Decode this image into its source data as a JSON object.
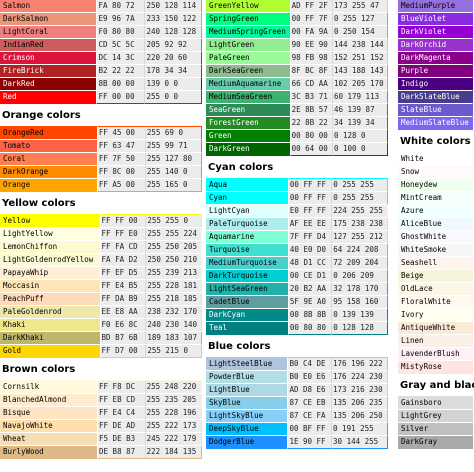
{
  "columns": [
    {
      "groups": [
        {
          "heading": "",
          "rows": [
            {
              "name": "Salmon",
              "hex": "FA 80 72",
              "rgb": "250 128 114",
              "color": "#fa8072",
              "text": "#000000"
            },
            {
              "name": "DarkSalmon",
              "hex": "E9 96 7A",
              "rgb": "233 150 122",
              "color": "#e9967a",
              "text": "#000000"
            },
            {
              "name": "LightCoral",
              "hex": "F0 80 80",
              "rgb": "240 128 128",
              "color": "#f08080",
              "text": "#000000"
            },
            {
              "name": "IndianRed",
              "hex": "CD 5C 5C",
              "rgb": "205 92 92",
              "color": "#cd5c5c",
              "text": "#000000"
            },
            {
              "name": "Crimson",
              "hex": "DC 14 3C",
              "rgb": "220 20 60",
              "color": "#dc143c",
              "text": "#ffffff"
            },
            {
              "name": "FireBrick",
              "hex": "B2 22 22",
              "rgb": "178 34 34",
              "color": "#b22222",
              "text": "#ffffff"
            },
            {
              "name": "DarkRed",
              "hex": "8B 00 00",
              "rgb": "139 0 0",
              "color": "#8b0000",
              "text": "#ffffff"
            },
            {
              "name": "Red",
              "hex": "FF 00 00",
              "rgb": "255 0 0",
              "color": "#ff0000",
              "text": "#ffffff"
            }
          ]
        },
        {
          "heading": "Orange colors",
          "rows": [
            {
              "name": "OrangeRed",
              "hex": "FF 45 00",
              "rgb": "255 69 0",
              "color": "#ff4500",
              "text": "#000000"
            },
            {
              "name": "Tomato",
              "hex": "FF 63 47",
              "rgb": "255 99 71",
              "color": "#ff6347",
              "text": "#000000"
            },
            {
              "name": "Coral",
              "hex": "FF 7F 50",
              "rgb": "255 127 80",
              "color": "#ff7f50",
              "text": "#000000"
            },
            {
              "name": "DarkOrange",
              "hex": "FF 8C 00",
              "rgb": "255 140 0",
              "color": "#ff8c00",
              "text": "#000000"
            },
            {
              "name": "Orange",
              "hex": "FF A5 00",
              "rgb": "255 165 0",
              "color": "#ffa500",
              "text": "#000000"
            }
          ]
        },
        {
          "heading": "Yellow colors",
          "rows": [
            {
              "name": "Yellow",
              "hex": "FF FF 00",
              "rgb": "255 255 0",
              "color": "#ffff00",
              "text": "#000000"
            },
            {
              "name": "LightYellow",
              "hex": "FF FF E0",
              "rgb": "255 255 224",
              "color": "#ffffe0",
              "text": "#000000"
            },
            {
              "name": "LemonChiffon",
              "hex": "FF FA CD",
              "rgb": "255 250 205",
              "color": "#fffacd",
              "text": "#000000"
            },
            {
              "name": "LightGoldenrodYellow",
              "hex": "FA FA D2",
              "rgb": "250 250 210",
              "color": "#fafad2",
              "text": "#000000"
            },
            {
              "name": "PapayaWhip",
              "hex": "FF EF D5",
              "rgb": "255 239 213",
              "color": "#ffefd5",
              "text": "#000000"
            },
            {
              "name": "Moccasin",
              "hex": "FF E4 B5",
              "rgb": "255 228 181",
              "color": "#ffe4b5",
              "text": "#000000"
            },
            {
              "name": "PeachPuff",
              "hex": "FF DA B9",
              "rgb": "255 218 185",
              "color": "#ffdab9",
              "text": "#000000"
            },
            {
              "name": "PaleGoldenrod",
              "hex": "EE E8 AA",
              "rgb": "238 232 170",
              "color": "#eee8aa",
              "text": "#000000"
            },
            {
              "name": "Khaki",
              "hex": "F0 E6 8C",
              "rgb": "240 230 140",
              "color": "#f0e68c",
              "text": "#000000"
            },
            {
              "name": "DarkKhaki",
              "hex": "BD B7 6B",
              "rgb": "189 183 107",
              "color": "#bdb76b",
              "text": "#000000"
            },
            {
              "name": "Gold",
              "hex": "FF D7 00",
              "rgb": "255 215 0",
              "color": "#ffd700",
              "text": "#000000"
            }
          ]
        },
        {
          "heading": "Brown colors",
          "rows": [
            {
              "name": "Cornsilk",
              "hex": "FF F8 DC",
              "rgb": "255 248 220",
              "color": "#fff8dc",
              "text": "#000000"
            },
            {
              "name": "BlanchedAlmond",
              "hex": "FF EB CD",
              "rgb": "255 235 205",
              "color": "#ffebcd",
              "text": "#000000"
            },
            {
              "name": "Bisque",
              "hex": "FF E4 C4",
              "rgb": "255 228 196",
              "color": "#ffe4c4",
              "text": "#000000"
            },
            {
              "name": "NavajoWhite",
              "hex": "FF DE AD",
              "rgb": "255 222 173",
              "color": "#ffdead",
              "text": "#000000"
            },
            {
              "name": "Wheat",
              "hex": "F5 DE B3",
              "rgb": "245 222 179",
              "color": "#f5deb3",
              "text": "#000000"
            },
            {
              "name": "BurlyWood",
              "hex": "DE B8 87",
              "rgb": "222 184 135",
              "color": "#deb887",
              "text": "#000000"
            }
          ]
        }
      ]
    },
    {
      "groups": [
        {
          "heading": "",
          "rows": [
            {
              "name": "GreenYellow",
              "hex": "AD FF 2F",
              "rgb": "173 255 47",
              "color": "#adff2f",
              "text": "#000000"
            },
            {
              "name": "SpringGreen",
              "hex": "00 FF 7F",
              "rgb": "0 255 127",
              "color": "#00ff7f",
              "text": "#000000"
            },
            {
              "name": "MediumSpringGreen",
              "hex": "00 FA 9A",
              "rgb": "0 250 154",
              "color": "#00fa9a",
              "text": "#000000"
            },
            {
              "name": "LightGreen",
              "hex": "90 EE 90",
              "rgb": "144 238 144",
              "color": "#90ee90",
              "text": "#000000"
            },
            {
              "name": "PaleGreen",
              "hex": "98 FB 98",
              "rgb": "152 251 152",
              "color": "#98fb98",
              "text": "#000000"
            },
            {
              "name": "DarkSeaGreen",
              "hex": "8F BC 8F",
              "rgb": "143 188 143",
              "color": "#8fbc8f",
              "text": "#000000"
            },
            {
              "name": "MediumAquamarine",
              "hex": "66 CD AA",
              "rgb": "102 205 170",
              "color": "#66cdaa",
              "text": "#000000"
            },
            {
              "name": "MediumSeaGreen",
              "hex": "3C B3 71",
              "rgb": "60 179 113",
              "color": "#3cb371",
              "text": "#000000"
            },
            {
              "name": "SeaGreen",
              "hex": "2E 8B 57",
              "rgb": "46 139 87",
              "color": "#2e8b57",
              "text": "#ffffff"
            },
            {
              "name": "ForestGreen",
              "hex": "22 8B 22",
              "rgb": "34 139 34",
              "color": "#228b22",
              "text": "#ffffff"
            },
            {
              "name": "Green",
              "hex": "00 80 00",
              "rgb": "0 128 0",
              "color": "#008000",
              "text": "#ffffff"
            },
            {
              "name": "DarkGreen",
              "hex": "00 64 00",
              "rgb": "0 100 0",
              "color": "#006400",
              "text": "#ffffff"
            }
          ]
        },
        {
          "heading": "Cyan colors",
          "rows": [
            {
              "name": "Aqua",
              "hex": "00 FF FF",
              "rgb": "0 255 255",
              "color": "#00ffff",
              "text": "#000000"
            },
            {
              "name": "Cyan",
              "hex": "00 FF FF",
              "rgb": "0 255 255",
              "color": "#00ffff",
              "text": "#000000"
            },
            {
              "name": "LightCyan",
              "hex": "E0 FF FF",
              "rgb": "224 255 255",
              "color": "#e0ffff",
              "text": "#000000"
            },
            {
              "name": "PaleTurquoise",
              "hex": "AF EE EE",
              "rgb": "175 238 238",
              "color": "#afeeee",
              "text": "#000000"
            },
            {
              "name": "Aquamarine",
              "hex": "7F FF D4",
              "rgb": "127 255 212",
              "color": "#7fffd4",
              "text": "#000000"
            },
            {
              "name": "Turquoise",
              "hex": "40 E0 D0",
              "rgb": "64 224 208",
              "color": "#40e0d0",
              "text": "#000000"
            },
            {
              "name": "MediumTurquoise",
              "hex": "48 D1 CC",
              "rgb": "72 209 204",
              "color": "#48d1cc",
              "text": "#000000"
            },
            {
              "name": "DarkTurquoise",
              "hex": "00 CE D1",
              "rgb": "0 206 209",
              "color": "#00ced1",
              "text": "#000000"
            },
            {
              "name": "LightSeaGreen",
              "hex": "20 B2 AA",
              "rgb": "32 178 170",
              "color": "#20b2aa",
              "text": "#000000"
            },
            {
              "name": "CadetBlue",
              "hex": "5F 9E A0",
              "rgb": "95 158 160",
              "color": "#5f9ea0",
              "text": "#000000"
            },
            {
              "name": "DarkCyan",
              "hex": "00 8B 8B",
              "rgb": "0 139 139",
              "color": "#008b8b",
              "text": "#ffffff"
            },
            {
              "name": "Teal",
              "hex": "00 80 80",
              "rgb": "0 128 128",
              "color": "#008080",
              "text": "#ffffff"
            }
          ]
        },
        {
          "heading": "Blue colors",
          "rows": [
            {
              "name": "LightSteelBlue",
              "hex": "B0 C4 DE",
              "rgb": "176 196 222",
              "color": "#b0c4de",
              "text": "#000000"
            },
            {
              "name": "PowderBlue",
              "hex": "B0 E0 E6",
              "rgb": "176 224 230",
              "color": "#b0e0e6",
              "text": "#000000"
            },
            {
              "name": "LightBlue",
              "hex": "AD D8 E6",
              "rgb": "173 216 230",
              "color": "#add8e6",
              "text": "#000000"
            },
            {
              "name": "SkyBlue",
              "hex": "87 CE EB",
              "rgb": "135 206 235",
              "color": "#87ceeb",
              "text": "#000000"
            },
            {
              "name": "LightSkyBlue",
              "hex": "87 CE FA",
              "rgb": "135 206 250",
              "color": "#87cefa",
              "text": "#000000"
            },
            {
              "name": "DeepSkyBlue",
              "hex": "00 BF FF",
              "rgb": "0 191 255",
              "color": "#00bfff",
              "text": "#000000"
            },
            {
              "name": "DodgerBlue",
              "hex": "1E 90 FF",
              "rgb": "30 144 255",
              "color": "#1e90ff",
              "text": "#000000"
            }
          ]
        }
      ]
    },
    {
      "groups": [
        {
          "heading": "",
          "rows": [
            {
              "name": "MediumPurple",
              "color": "#9370db",
              "text": "#000000"
            },
            {
              "name": "BlueViolet",
              "color": "#8a2be2",
              "text": "#ffffff"
            },
            {
              "name": "DarkViolet",
              "color": "#9400d3",
              "text": "#ffffff"
            },
            {
              "name": "DarkOrchid",
              "color": "#9932cc",
              "text": "#ffffff"
            },
            {
              "name": "DarkMagenta",
              "color": "#8b008b",
              "text": "#ffffff"
            },
            {
              "name": "Purple",
              "color": "#800080",
              "text": "#ffffff"
            },
            {
              "name": "Indigo",
              "color": "#4b0082",
              "text": "#ffffff"
            },
            {
              "name": "DarkSlateBlue",
              "color": "#483d8b",
              "text": "#ffffff"
            },
            {
              "name": "SlateBlue",
              "color": "#6a5acd",
              "text": "#ffffff"
            },
            {
              "name": "MediumSlateBlue",
              "color": "#7b68ee",
              "text": "#ffffff"
            }
          ]
        },
        {
          "heading": "White colors",
          "rows": [
            {
              "name": "White",
              "color": "#ffffff",
              "text": "#000000"
            },
            {
              "name": "Snow",
              "color": "#fffafa",
              "text": "#000000"
            },
            {
              "name": "Honeydew",
              "color": "#f0fff0",
              "text": "#000000"
            },
            {
              "name": "MintCream",
              "color": "#f5fffa",
              "text": "#000000"
            },
            {
              "name": "Azure",
              "color": "#f0ffff",
              "text": "#000000"
            },
            {
              "name": "AliceBlue",
              "color": "#f0f8ff",
              "text": "#000000"
            },
            {
              "name": "GhostWhite",
              "color": "#f8f8ff",
              "text": "#000000"
            },
            {
              "name": "WhiteSmoke",
              "color": "#f5f5f5",
              "text": "#000000"
            },
            {
              "name": "Seashell",
              "color": "#fff5ee",
              "text": "#000000"
            },
            {
              "name": "Beige",
              "color": "#f5f5dc",
              "text": "#000000"
            },
            {
              "name": "OldLace",
              "color": "#fdf5e6",
              "text": "#000000"
            },
            {
              "name": "FloralWhite",
              "color": "#fffaf0",
              "text": "#000000"
            },
            {
              "name": "Ivory",
              "color": "#fffff0",
              "text": "#000000"
            },
            {
              "name": "AntiqueWhite",
              "color": "#faebd7",
              "text": "#000000"
            },
            {
              "name": "Linen",
              "color": "#faf0e6",
              "text": "#000000"
            },
            {
              "name": "LavenderBlush",
              "color": "#fff0f5",
              "text": "#000000"
            },
            {
              "name": "MistyRose",
              "color": "#ffe4e1",
              "text": "#000000"
            }
          ]
        },
        {
          "heading": "Gray and black colors",
          "rows": [
            {
              "name": "Gainsboro",
              "color": "#dcdcdc",
              "text": "#000000"
            },
            {
              "name": "LightGrey",
              "color": "#d3d3d3",
              "text": "#000000"
            },
            {
              "name": "Silver",
              "color": "#c0c0c0",
              "text": "#000000"
            },
            {
              "name": "DarkGray",
              "color": "#a9a9a9",
              "text": "#000000"
            }
          ]
        }
      ]
    }
  ]
}
